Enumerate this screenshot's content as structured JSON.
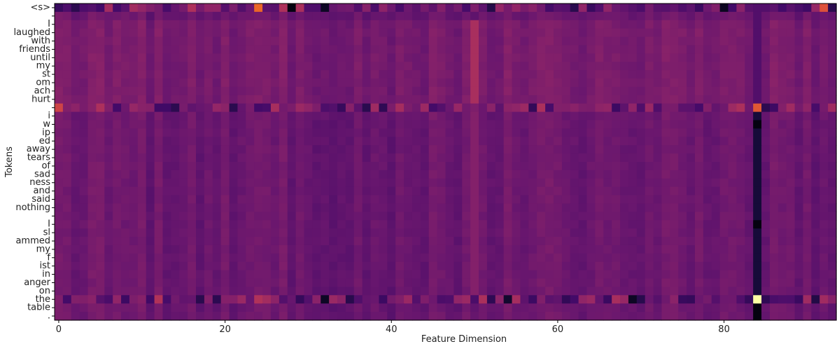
{
  "chart_data": {
    "type": "heatmap",
    "xlabel": "Feature Dimension",
    "ylabel": "Tokens",
    "x_ticks": [
      0,
      20,
      40,
      60,
      80
    ],
    "x_range": [
      0,
      93
    ],
    "colormap": "inferno",
    "tokens": [
      "<s>",
      "",
      "I",
      "laughed",
      "with",
      "friends",
      "until",
      "my",
      "st",
      "om",
      "ach",
      "hurt",
      "",
      "i",
      "w",
      "ip",
      "ed",
      "away",
      "tears",
      "of",
      "sad",
      "ness",
      "and",
      "said",
      "nothing",
      "",
      "I",
      "sl",
      "ammed",
      "my",
      "f",
      "ist",
      "in",
      "anger",
      "on",
      "the",
      "table",
      "."
    ],
    "notable_columns": [
      {
        "dimension": 50,
        "description_values": "elevated in rows 2-11"
      },
      {
        "dimension": 84,
        "description_values": "very low for most rows, bright at 'the'"
      }
    ]
  }
}
